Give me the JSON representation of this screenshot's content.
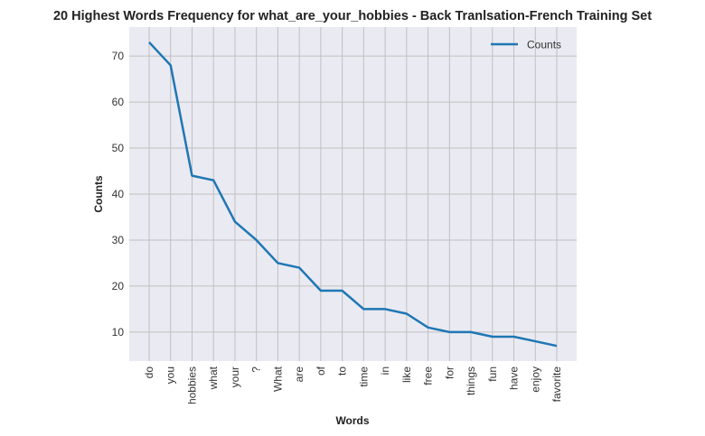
{
  "chart_data": {
    "type": "line",
    "title": "20 Highest Words Frequency for what_are_your_hobbies - Back Tranlsation-French Training Set",
    "xlabel": "Words",
    "ylabel": "Counts",
    "categories": [
      "do",
      "you",
      "hobbies",
      "what",
      "your",
      "?",
      "What",
      "are",
      "of",
      "to",
      "time",
      "in",
      "like",
      "free",
      "for",
      "things",
      "fun",
      "have",
      "enjoy",
      "favorite"
    ],
    "series": [
      {
        "name": "Counts",
        "values": [
          73,
          68,
          44,
          43,
          34,
          30,
          25,
          24,
          19,
          19,
          15,
          15,
          14,
          11,
          10,
          10,
          9,
          9,
          8,
          7
        ],
        "color": "#1f77b4"
      }
    ],
    "yticks": [
      10,
      20,
      30,
      40,
      50,
      60,
      70
    ],
    "ylim": [
      3.7,
      76.3
    ],
    "grid": true,
    "legend_position": "top-right",
    "background_color": "#eaeaf2",
    "grid_color": "#c0c0c0"
  }
}
